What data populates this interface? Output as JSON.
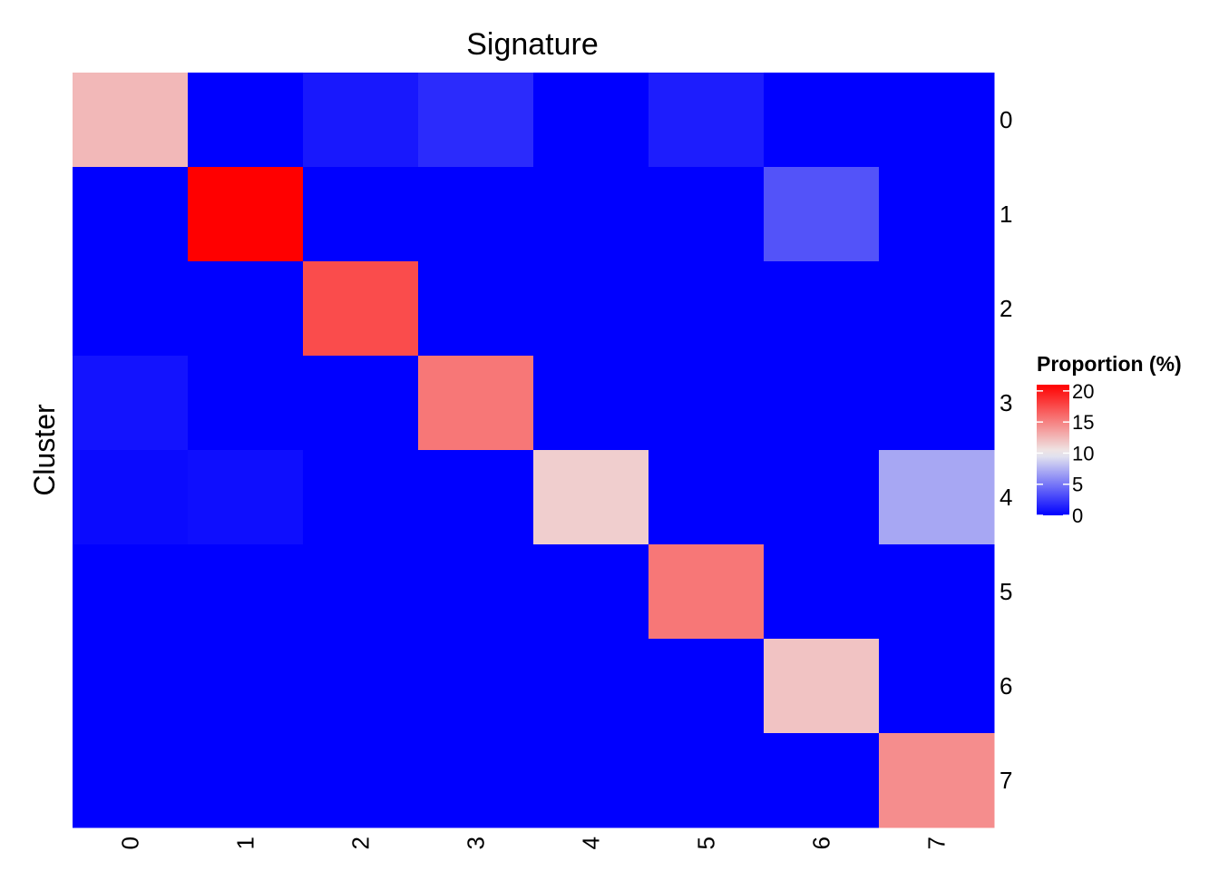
{
  "chart_data": {
    "type": "heatmap",
    "title": "Signature",
    "xlabel": "",
    "ylabel": "Cluster",
    "x_categories": [
      "0",
      "1",
      "2",
      "3",
      "4",
      "5",
      "6",
      "7"
    ],
    "y_categories": [
      "0",
      "1",
      "2",
      "3",
      "4",
      "5",
      "6",
      "7"
    ],
    "values": [
      [
        12.5,
        0.0,
        1.0,
        1.8,
        0.0,
        1.2,
        0.0,
        0.0
      ],
      [
        0.0,
        21.0,
        0.0,
        0.0,
        0.0,
        0.0,
        3.5,
        0.0
      ],
      [
        0.0,
        0.0,
        17.5,
        0.0,
        0.0,
        0.0,
        0.0,
        0.0
      ],
      [
        0.8,
        0.0,
        0.0,
        15.5,
        0.0,
        0.0,
        0.0,
        0.0
      ],
      [
        0.4,
        0.6,
        0.0,
        0.0,
        11.5,
        0.0,
        0.0,
        7.0
      ],
      [
        0.0,
        0.0,
        0.0,
        0.0,
        0.0,
        15.5,
        0.0,
        0.0
      ],
      [
        0.0,
        0.0,
        0.0,
        0.0,
        0.0,
        0.0,
        12.0,
        0.0
      ],
      [
        0.0,
        0.0,
        0.0,
        0.0,
        0.0,
        0.0,
        0.0,
        14.5
      ]
    ],
    "color_scale": {
      "low": "#0000ff",
      "mid": "#eeeeee",
      "high": "#ff0000",
      "range": [
        0,
        21
      ],
      "midpoint": 10
    },
    "legend": {
      "title": "Proportion (%)",
      "ticks": [
        0,
        5,
        10,
        15,
        20
      ],
      "placement": "right"
    }
  }
}
